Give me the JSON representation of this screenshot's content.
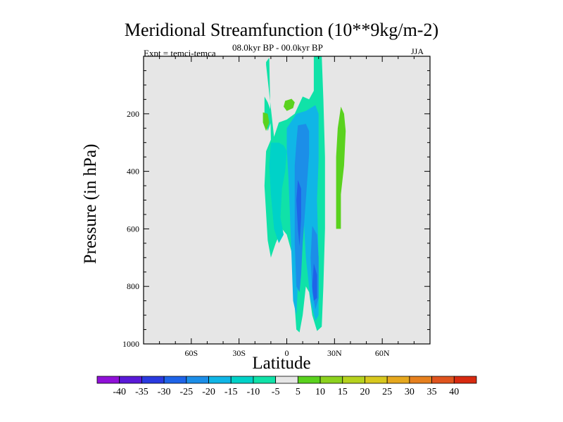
{
  "chart_data": {
    "type": "contour",
    "title": "Meridional Streamfunction (10**9kg/m-2)",
    "subtitle": "08.0kyr BP - 00.0kyr BP",
    "experiment": "Expt = temci-temca",
    "season": "JJA",
    "xlabel": "Latitude",
    "ylabel": "Pressure (in hPa)",
    "xlim": [
      -90,
      90
    ],
    "ylim": [
      0,
      1000
    ],
    "x_ticks": [
      {
        "value": -60,
        "label": "60S"
      },
      {
        "value": -30,
        "label": "30S"
      },
      {
        "value": 0,
        "label": "0"
      },
      {
        "value": 30,
        "label": "30N"
      },
      {
        "value": 60,
        "label": "60N"
      }
    ],
    "y_ticks": [
      {
        "value": 200,
        "label": "200"
      },
      {
        "value": 400,
        "label": "400"
      },
      {
        "value": 600,
        "label": "600"
      },
      {
        "value": 800,
        "label": "800"
      },
      {
        "value": 1000,
        "label": "1000"
      }
    ],
    "background_color": "#e6e6e6",
    "colorbar": {
      "levels": [
        "-40",
        "-35",
        "-30",
        "-25",
        "-20",
        "-15",
        "-10",
        "-5",
        "5",
        "10",
        "15",
        "20",
        "25",
        "30",
        "35",
        "40"
      ],
      "colors": [
        "#9010d8",
        "#5a1ad8",
        "#2a3ae0",
        "#1e64e8",
        "#1c8ee8",
        "#10b6e6",
        "#00d2c8",
        "#10e2a8",
        "#e6e6e6",
        "#5ad21e",
        "#8cd21e",
        "#b6d21e",
        "#d8c81e",
        "#e6a81e",
        "#e6801e",
        "#e0541e",
        "#d82a10"
      ]
    },
    "regions": [
      {
        "level_index": 7,
        "points": [
          [
            -13,
            30
          ],
          [
            -13,
            20
          ],
          [
            -11,
            5
          ],
          [
            -10,
            290
          ],
          [
            -13,
            330
          ],
          [
            -14,
            450
          ],
          [
            -12,
            640
          ],
          [
            -10,
            700
          ],
          [
            -7,
            650
          ],
          [
            -3,
            600
          ],
          [
            0,
            620
          ],
          [
            4,
            700
          ],
          [
            5,
            870
          ],
          [
            6,
            950
          ],
          [
            8,
            960
          ],
          [
            10,
            900
          ],
          [
            12,
            800
          ],
          [
            14,
            820
          ],
          [
            16,
            900
          ],
          [
            19,
            955
          ],
          [
            22,
            940
          ],
          [
            23,
            800
          ],
          [
            24,
            600
          ],
          [
            24,
            350
          ],
          [
            23,
            150
          ],
          [
            22,
            0
          ],
          [
            17,
            0
          ],
          [
            17,
            120
          ],
          [
            14,
            150
          ],
          [
            10,
            140
          ],
          [
            5,
            200
          ],
          [
            0,
            220
          ],
          [
            -5,
            230
          ],
          [
            -8,
            280
          ]
        ]
      },
      {
        "level_index": 7,
        "points": [
          [
            -14,
            140
          ],
          [
            -12,
            160
          ],
          [
            -10,
            190
          ],
          [
            -10,
            230
          ],
          [
            -12,
            260
          ],
          [
            -14,
            210
          ]
        ]
      },
      {
        "level_index": 9,
        "points": [
          [
            -15,
            195
          ],
          [
            -12,
            200
          ],
          [
            -11,
            230
          ],
          [
            -13,
            260
          ],
          [
            -15,
            230
          ]
        ]
      },
      {
        "level_index": 9,
        "points": [
          [
            -1,
            155
          ],
          [
            3,
            148
          ],
          [
            5,
            160
          ],
          [
            4,
            180
          ],
          [
            0,
            190
          ],
          [
            -2,
            175
          ]
        ]
      },
      {
        "level_index": 9,
        "points": [
          [
            34,
            175
          ],
          [
            36,
            200
          ],
          [
            37,
            260
          ],
          [
            36,
            380
          ],
          [
            34,
            480
          ],
          [
            34,
            600
          ],
          [
            31,
            600
          ],
          [
            31,
            480
          ],
          [
            31,
            350
          ],
          [
            32,
            250
          ]
        ]
      },
      {
        "level_index": 6,
        "points": [
          [
            -10,
            300
          ],
          [
            -5,
            300
          ],
          [
            -2,
            310
          ],
          [
            0,
            330
          ],
          [
            -1,
            400
          ],
          [
            -3,
            460
          ],
          [
            -4,
            560
          ],
          [
            -2,
            620
          ],
          [
            -5,
            650
          ],
          [
            -8,
            600
          ],
          [
            -10,
            480
          ],
          [
            -11,
            380
          ]
        ]
      },
      {
        "level_index": 5,
        "points": [
          [
            0,
            250
          ],
          [
            6,
            200
          ],
          [
            12,
            190
          ],
          [
            18,
            170
          ],
          [
            20,
            200
          ],
          [
            20,
            360
          ],
          [
            19,
            500
          ],
          [
            20,
            700
          ],
          [
            20,
            900
          ],
          [
            18,
            920
          ],
          [
            15,
            850
          ],
          [
            12,
            700
          ],
          [
            11,
            600
          ],
          [
            10,
            520
          ],
          [
            8,
            600
          ],
          [
            7,
            800
          ],
          [
            6,
            900
          ],
          [
            4,
            850
          ],
          [
            3,
            700
          ],
          [
            2,
            550
          ],
          [
            1,
            420
          ],
          [
            0,
            320
          ]
        ]
      },
      {
        "level_index": 4,
        "points": [
          [
            7,
            240
          ],
          [
            12,
            235
          ],
          [
            14,
            260
          ],
          [
            14,
            340
          ],
          [
            13,
            420
          ],
          [
            12,
            500
          ],
          [
            10,
            650
          ],
          [
            9,
            760
          ],
          [
            8,
            820
          ],
          [
            6,
            800
          ],
          [
            5,
            650
          ],
          [
            5,
            500
          ],
          [
            5,
            380
          ],
          [
            6,
            300
          ]
        ]
      },
      {
        "level_index": 4,
        "points": [
          [
            16,
            590
          ],
          [
            19,
            620
          ],
          [
            20,
            700
          ],
          [
            20,
            840
          ],
          [
            18,
            880
          ],
          [
            16,
            820
          ],
          [
            15,
            700
          ]
        ]
      },
      {
        "level_index": 3,
        "points": [
          [
            7,
            430
          ],
          [
            9,
            460
          ],
          [
            9,
            560
          ],
          [
            8,
            660
          ],
          [
            7,
            600
          ],
          [
            6,
            500
          ]
        ]
      },
      {
        "level_index": 3,
        "points": [
          [
            17,
            720
          ],
          [
            19,
            760
          ],
          [
            19,
            840
          ],
          [
            17,
            850
          ],
          [
            16,
            800
          ]
        ]
      }
    ]
  }
}
